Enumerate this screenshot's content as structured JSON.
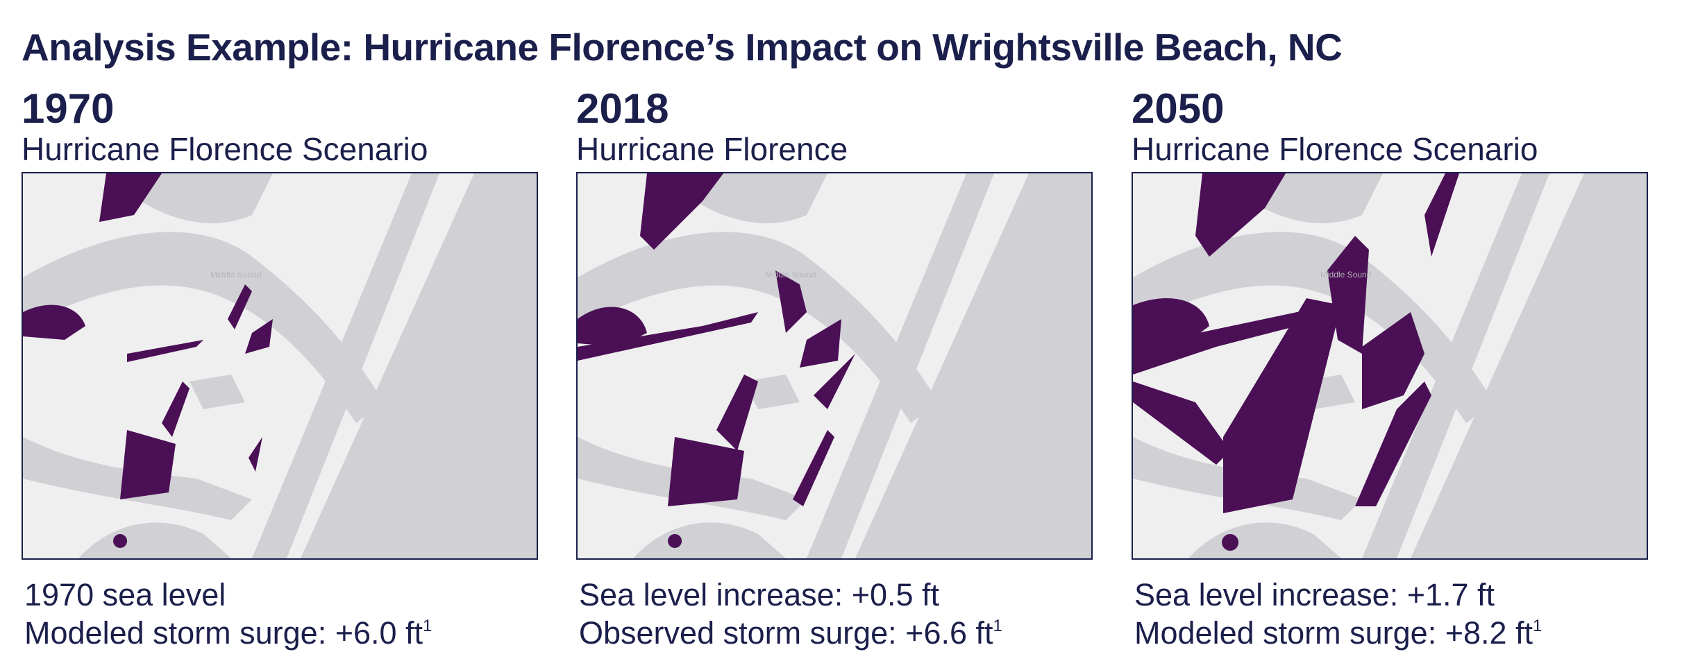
{
  "title": "Analysis Example: Hurricane Florence’s Impact on Wrightsville Beach, NC",
  "colors": {
    "text": "#1b1f4b",
    "flood": "#4a0f55",
    "land": "#efefef",
    "water": "#d0d0d5"
  },
  "panels": [
    {
      "year": "1970",
      "subtitle": "Hurricane Florence Scenario",
      "map_label": "Middle Sound",
      "line1": "1970 sea level",
      "line2": "Modeled storm surge: +6.0 ft",
      "footnote": "1"
    },
    {
      "year": "2018",
      "subtitle": "Hurricane Florence",
      "map_label": "Middle Sound",
      "line1": "Sea level increase: +0.5 ft",
      "line2": "Observed storm surge: +6.6 ft",
      "footnote": "1"
    },
    {
      "year": "2050",
      "subtitle": "Hurricane Florence Scenario",
      "map_label": "Middle Sound",
      "line1": "Sea level increase: +1.7 ft",
      "line2": "Modeled storm surge: +8.2 ft",
      "footnote": "1"
    }
  ]
}
